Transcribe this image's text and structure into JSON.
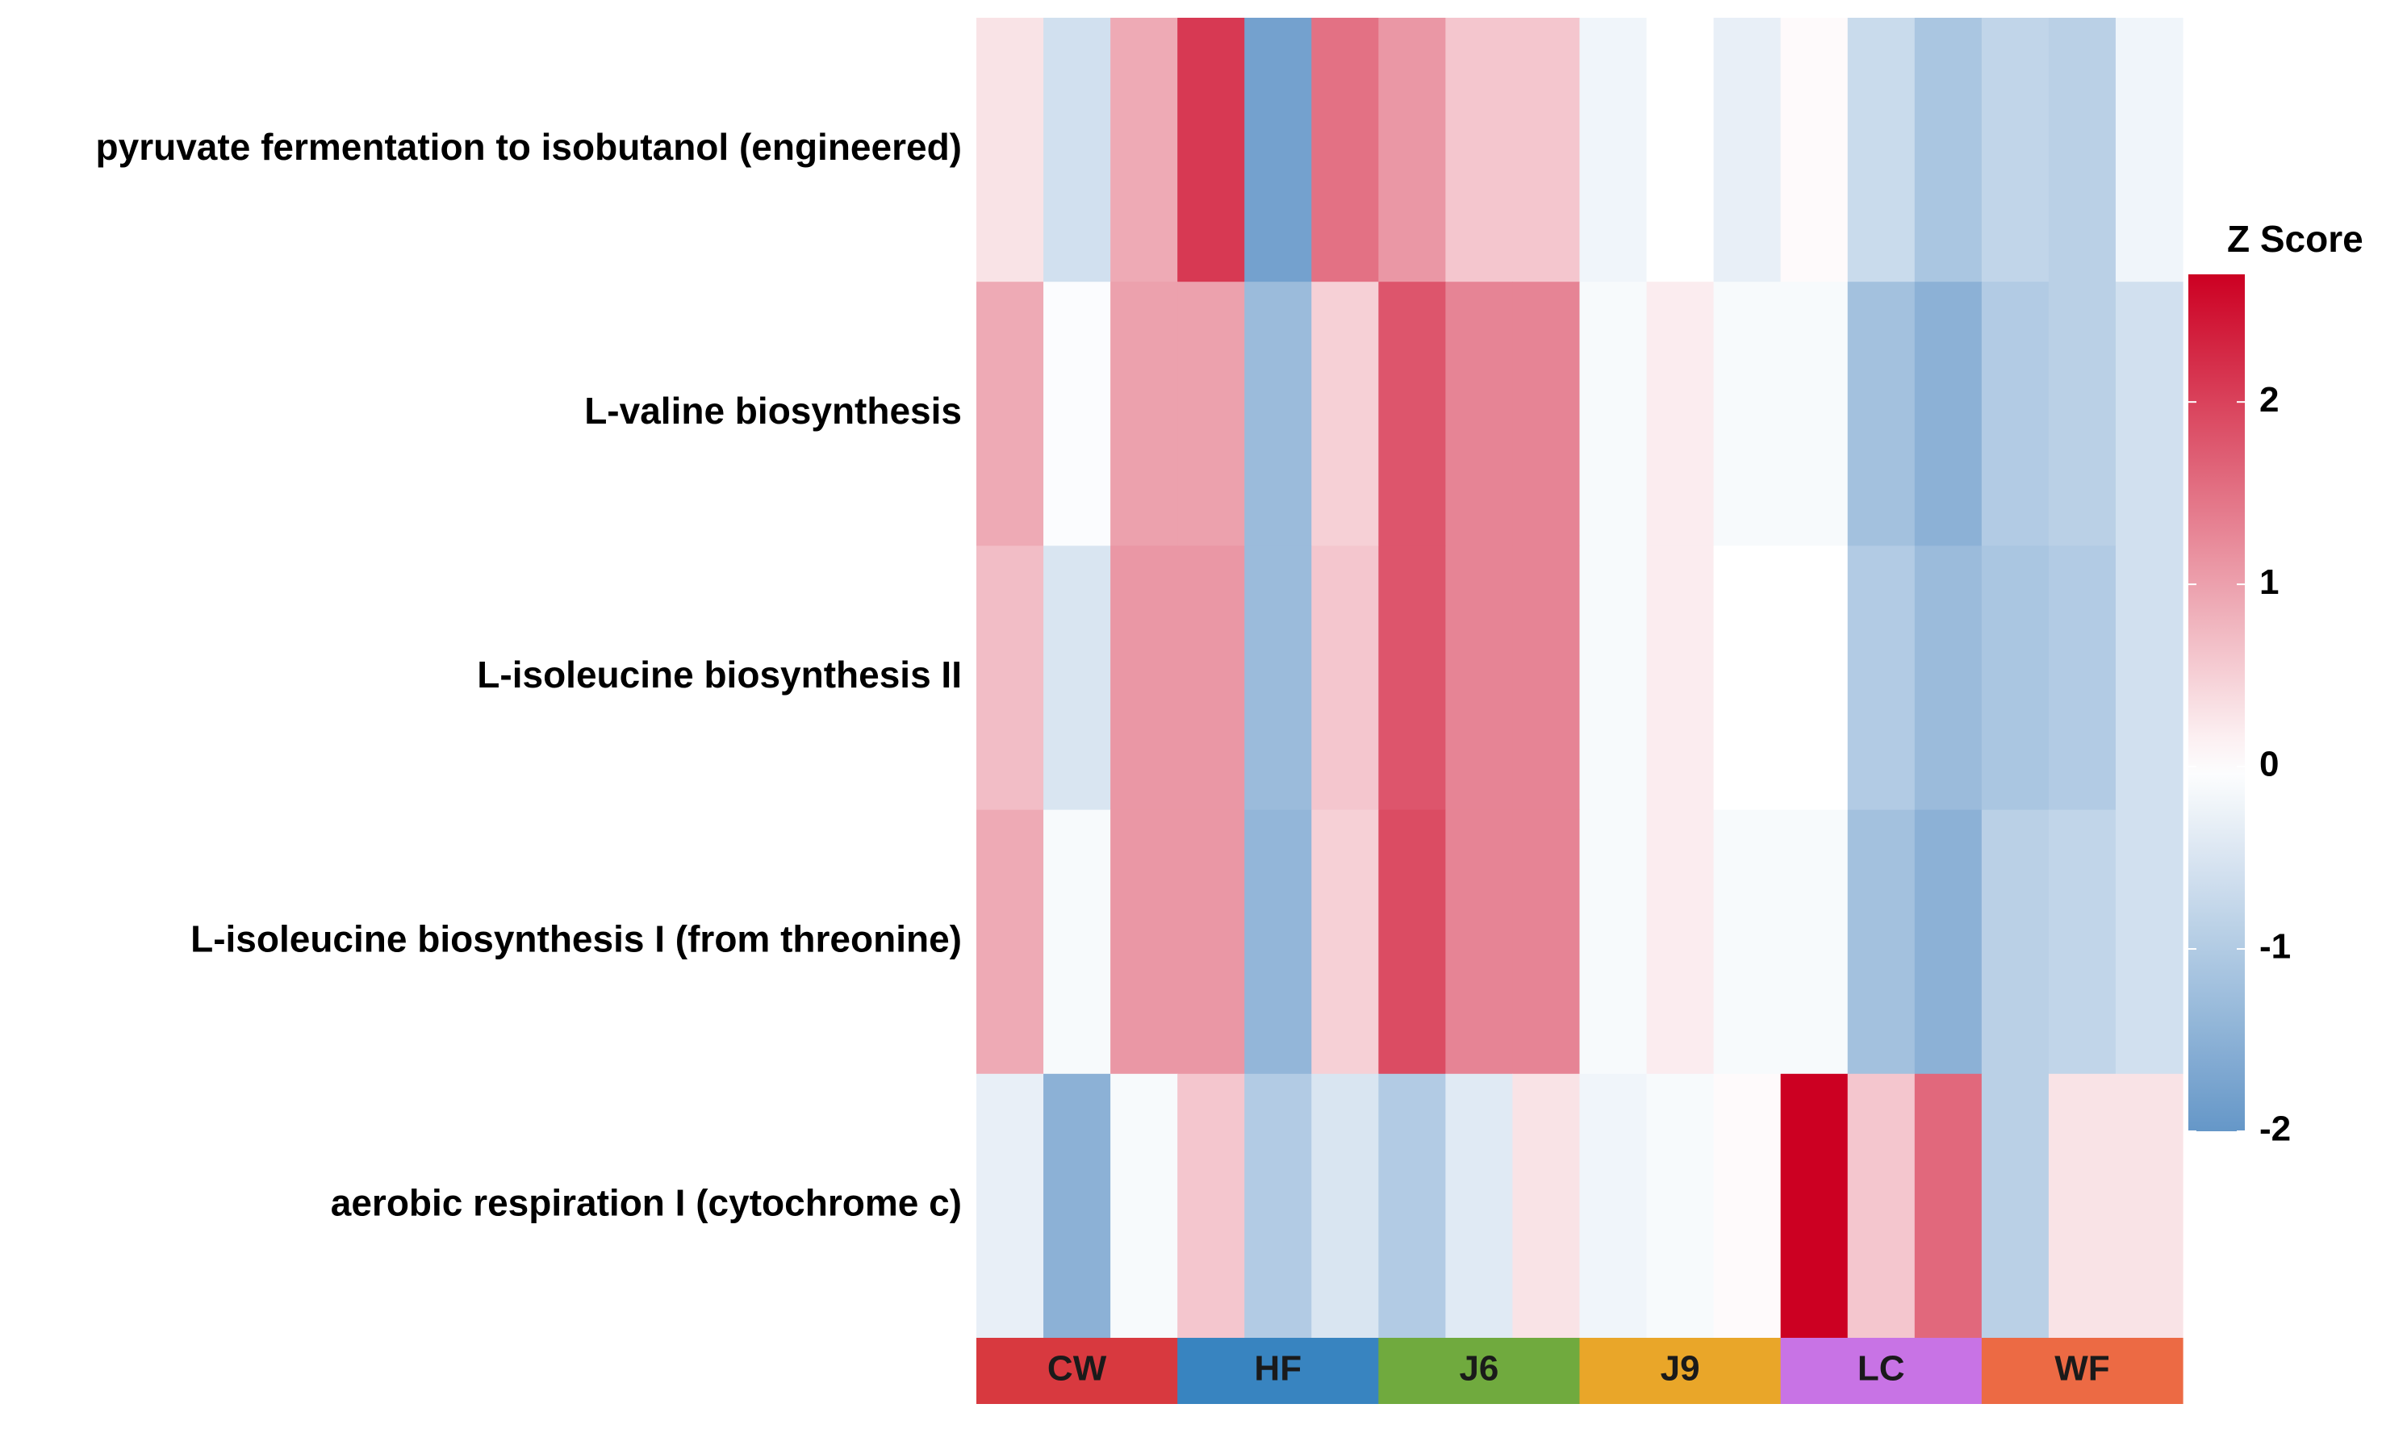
{
  "chart_data": {
    "type": "heatmap",
    "rows": [
      "pyruvate fermentation to isobutanol (engineered)",
      "L-valine biosynthesis",
      "L-isoleucine biosynthesis II",
      "L-isoleucine biosynthesis I (from threonine)",
      "aerobic respiration I (cytochrome c)"
    ],
    "groups": [
      {
        "name": "CW",
        "color": "#d8393f"
      },
      {
        "name": "HF",
        "color": "#3884c0"
      },
      {
        "name": "J6",
        "color": "#70aa3e"
      },
      {
        "name": "J9",
        "color": "#e9a629"
      },
      {
        "name": "LC",
        "color": "#c873e5"
      },
      {
        "name": "WF",
        "color": "#ec6a44"
      }
    ],
    "samples_per_group": 3,
    "values": [
      [
        0.3,
        -0.6,
        0.9,
        2.1,
        -1.8,
        1.5,
        1.1,
        0.6,
        0.6,
        -0.2,
        0.0,
        -0.3,
        0.05,
        -0.7,
        -1.1,
        -0.8,
        -0.9,
        -0.2
      ],
      [
        0.9,
        -0.05,
        1.0,
        1.0,
        -1.3,
        0.5,
        1.8,
        1.3,
        1.3,
        -0.1,
        0.2,
        -0.1,
        -0.1,
        -1.2,
        -1.5,
        -1.0,
        -0.9,
        -0.6
      ],
      [
        0.7,
        -0.5,
        1.1,
        1.1,
        -1.3,
        0.6,
        1.8,
        1.3,
        1.3,
        -0.1,
        0.2,
        0.0,
        0.0,
        -1.0,
        -1.3,
        -1.1,
        -1.0,
        -0.6
      ],
      [
        0.9,
        -0.1,
        1.1,
        1.1,
        -1.4,
        0.5,
        1.9,
        1.3,
        1.3,
        -0.1,
        0.2,
        -0.1,
        -0.1,
        -1.2,
        -1.5,
        -0.9,
        -0.8,
        -0.6
      ],
      [
        -0.3,
        -1.5,
        -0.1,
        0.6,
        -1.0,
        -0.5,
        -1.0,
        -0.4,
        0.3,
        -0.2,
        -0.1,
        0.05,
        2.7,
        0.6,
        1.6,
        -0.9,
        0.3,
        0.3
      ]
    ],
    "color_scale": {
      "min": -2,
      "max": 2.7,
      "low_color": "#6597c8",
      "mid_color": "#ffffff",
      "high_color": "#cc0022"
    },
    "legend": {
      "title": "Z Score",
      "ticks": [
        2,
        1,
        0,
        -1,
        -2
      ],
      "position": "right"
    }
  }
}
